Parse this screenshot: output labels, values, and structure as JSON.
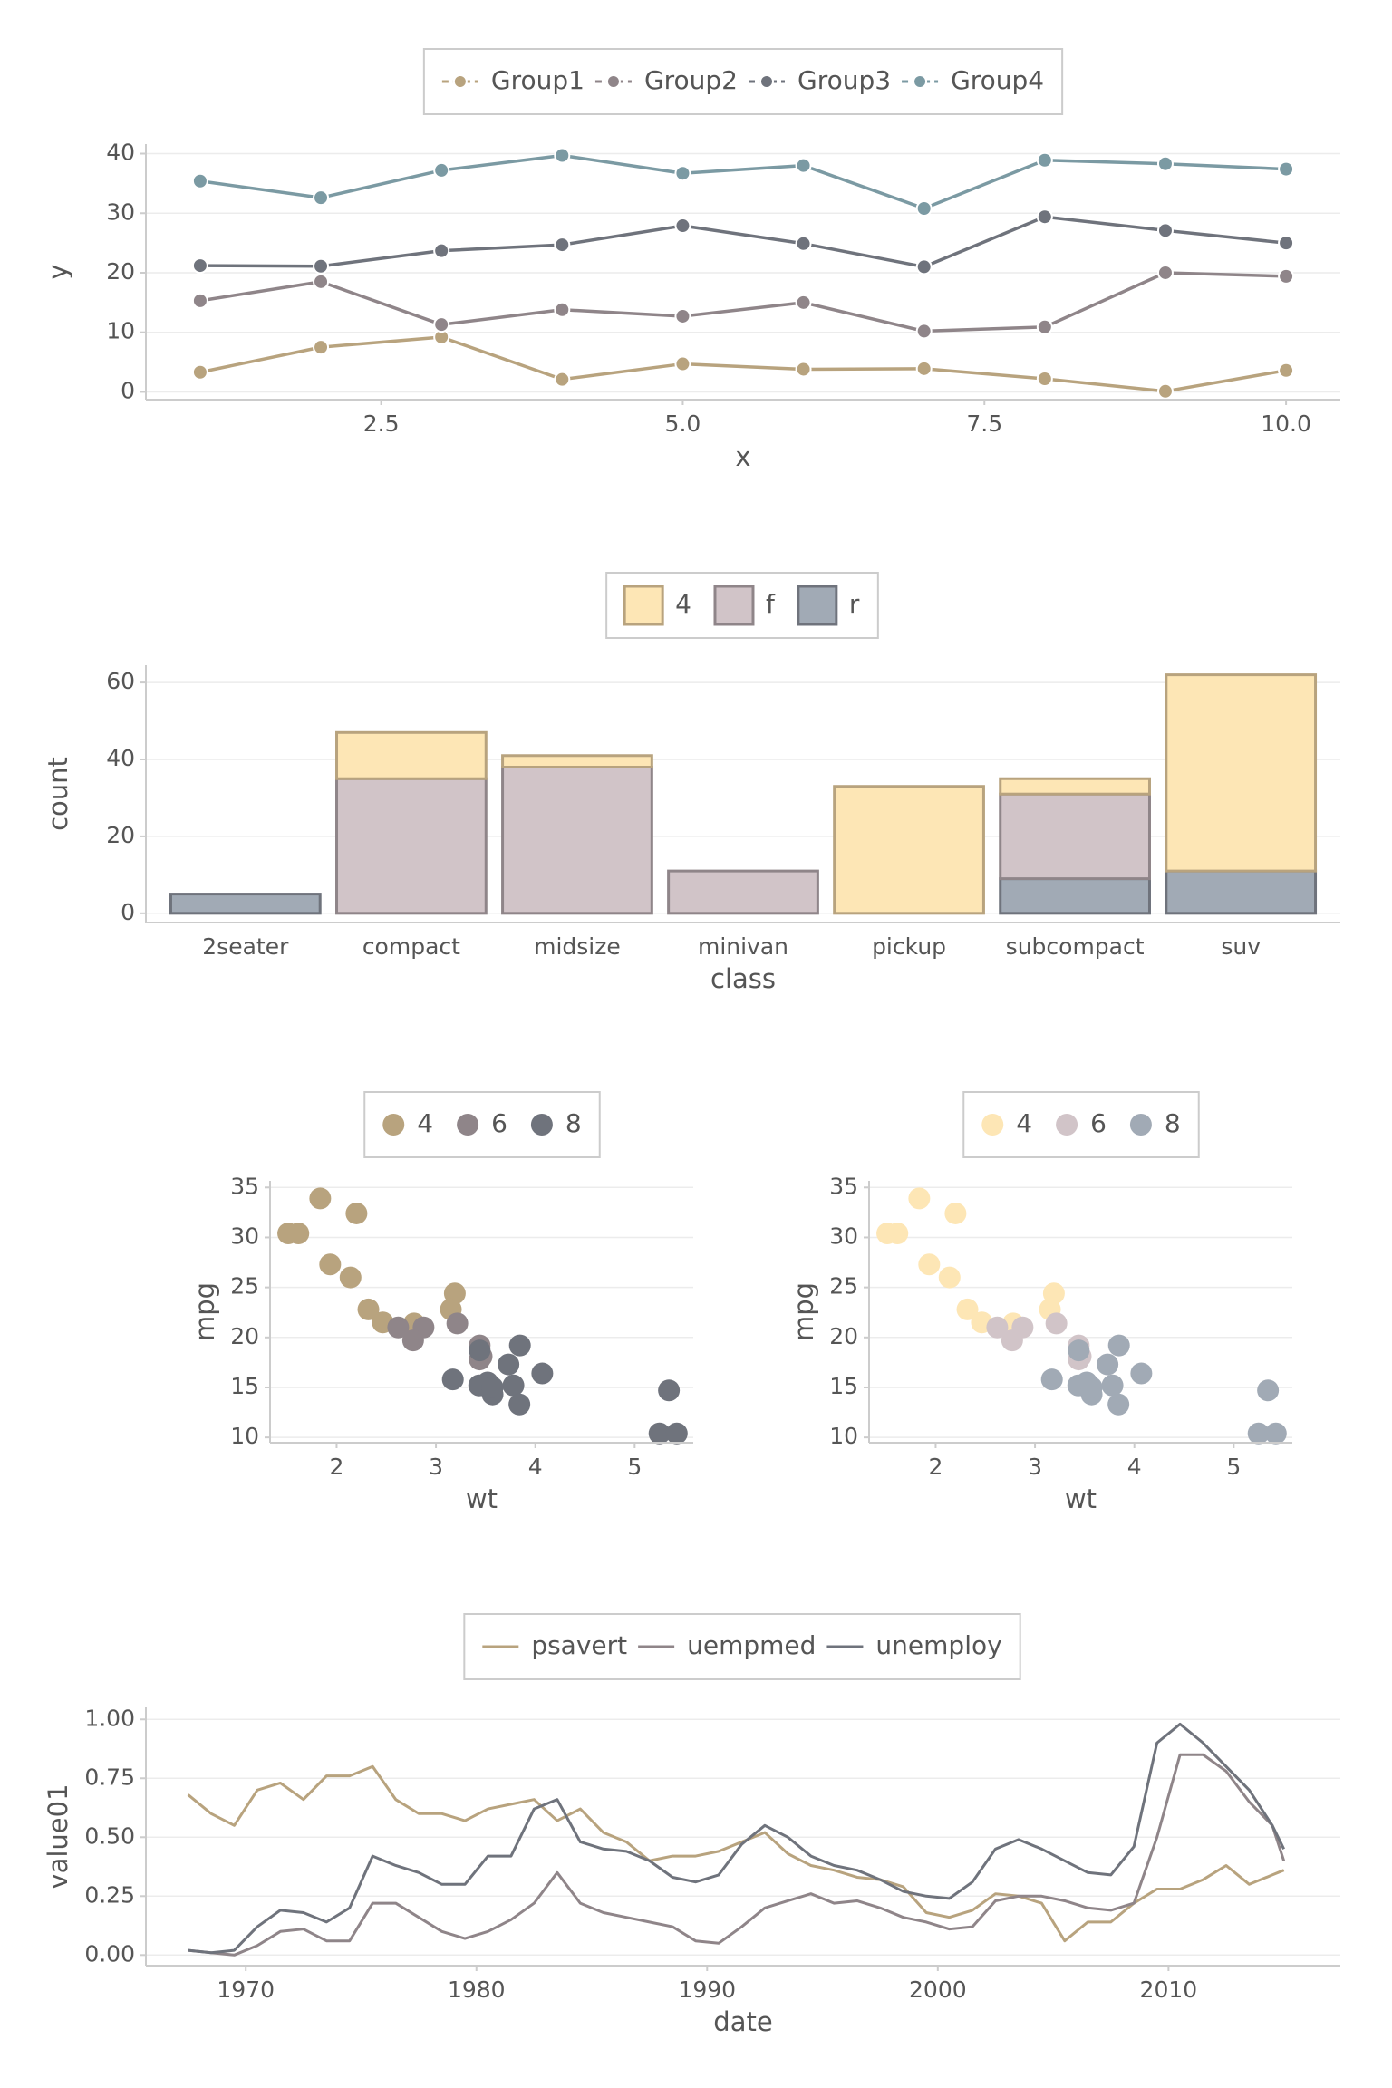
{
  "chart_data": [
    {
      "type": "line",
      "x": [
        1,
        2,
        3,
        4,
        5,
        6,
        7,
        8,
        9,
        10
      ],
      "series": [
        {
          "name": "Group1",
          "color": "#b8a37e",
          "values": [
            3.3,
            7.5,
            9.2,
            2.1,
            4.7,
            3.8,
            3.9,
            2.2,
            0.1,
            3.6
          ]
        },
        {
          "name": "Group2",
          "color": "#8f8589",
          "values": [
            15.3,
            18.5,
            11.3,
            13.8,
            12.7,
            15.0,
            10.2,
            10.9,
            20.0,
            19.4
          ]
        },
        {
          "name": "Group3",
          "color": "#6f737c",
          "values": [
            21.2,
            21.1,
            23.7,
            24.7,
            27.9,
            24.9,
            21.0,
            29.4,
            27.1,
            25.0
          ]
        },
        {
          "name": "Group4",
          "color": "#7b9aa3",
          "values": [
            35.4,
            32.6,
            37.2,
            39.7,
            36.7,
            38.0,
            30.8,
            38.9,
            38.3,
            37.4
          ]
        }
      ],
      "xlim": [
        0.55,
        10.45
      ],
      "ylim": [
        -1.3,
        41.6
      ],
      "xticks": [
        2.5,
        {
          "value": 5,
          "label": "5.0"
        },
        7.5,
        {
          "value": 10,
          "label": "10.0"
        }
      ],
      "yticks": [
        0,
        10,
        20,
        30,
        40
      ],
      "x_label": "x",
      "y_label": "y",
      "legend": "top",
      "grid": true,
      "markers": true
    },
    {
      "type": "bar",
      "stacked": true,
      "categories": [
        "2seater",
        "compact",
        "midsize",
        "minivan",
        "pickup",
        "subcompact",
        "suv"
      ],
      "series": [
        {
          "name": "4",
          "color": "#fde6b5",
          "edgecolor": "#b8a37e",
          "values": [
            0,
            12,
            3,
            0,
            33,
            4,
            51
          ]
        },
        {
          "name": "f",
          "color": "#d1c4c8",
          "edgecolor": "#8f8589",
          "values": [
            0,
            35,
            38,
            11,
            0,
            22,
            0
          ]
        },
        {
          "name": "r",
          "color": "#a1aab5",
          "edgecolor": "#6f737c",
          "values": [
            5,
            0,
            0,
            0,
            0,
            9,
            11
          ]
        }
      ],
      "ylim": [
        -2.4,
        64.5
      ],
      "yticks": [
        0,
        20,
        40,
        60
      ],
      "x_label": "class",
      "y_label": "count",
      "legend": "top",
      "grid": true
    },
    {
      "type": "scatter",
      "series": [
        {
          "name": "4",
          "color": "#b8a37e",
          "x": [
            2.32,
            3.19,
            3.15,
            2.2,
            1.615,
            1.835,
            2.465,
            1.935,
            2.14,
            1.513,
            2.78
          ],
          "values": [
            22.8,
            24.4,
            22.8,
            32.4,
            30.4,
            33.9,
            21.5,
            27.3,
            26.0,
            30.4,
            21.4
          ]
        },
        {
          "name": "6",
          "color": "#8f8589",
          "x": [
            2.62,
            2.875,
            3.215,
            3.46,
            3.44,
            3.44,
            2.77
          ],
          "values": [
            21.0,
            21.0,
            21.4,
            18.1,
            19.2,
            17.8,
            19.7
          ]
        },
        {
          "name": "8",
          "color": "#6f737c",
          "x": [
            3.44,
            3.57,
            4.07,
            3.73,
            3.78,
            5.25,
            5.424,
            5.345,
            3.52,
            3.435,
            3.84,
            3.845,
            3.17,
            3.57
          ],
          "values": [
            18.7,
            14.3,
            16.4,
            17.3,
            15.2,
            10.4,
            10.4,
            14.7,
            15.5,
            15.2,
            13.3,
            19.2,
            15.8,
            15.0
          ]
        }
      ],
      "xlim": [
        1.33,
        5.59
      ],
      "ylim": [
        9.47,
        35.66
      ],
      "xticks": [
        2,
        3,
        4,
        5
      ],
      "yticks": [
        10,
        15,
        20,
        25,
        30,
        35
      ],
      "x_label": "wt",
      "y_label": "mpg",
      "legend": "top",
      "grid": true
    },
    {
      "type": "scatter",
      "series": [
        {
          "name": "4",
          "color": "#fde6b5",
          "x": [
            2.32,
            3.19,
            3.15,
            2.2,
            1.615,
            1.835,
            2.465,
            1.935,
            2.14,
            1.513,
            2.78
          ],
          "values": [
            22.8,
            24.4,
            22.8,
            32.4,
            30.4,
            33.9,
            21.5,
            27.3,
            26.0,
            30.4,
            21.4
          ]
        },
        {
          "name": "6",
          "color": "#d1c4c8",
          "x": [
            2.62,
            2.875,
            3.215,
            3.46,
            3.44,
            3.44,
            2.77
          ],
          "values": [
            21.0,
            21.0,
            21.4,
            18.1,
            19.2,
            17.8,
            19.7
          ]
        },
        {
          "name": "8",
          "color": "#a1aab5",
          "x": [
            3.44,
            3.57,
            4.07,
            3.73,
            3.78,
            5.25,
            5.424,
            5.345,
            3.52,
            3.435,
            3.84,
            3.845,
            3.17,
            3.57
          ],
          "values": [
            18.7,
            14.3,
            16.4,
            17.3,
            15.2,
            10.4,
            10.4,
            14.7,
            15.5,
            15.2,
            13.3,
            19.2,
            15.8,
            15.0
          ]
        }
      ],
      "xlim": [
        1.33,
        5.59
      ],
      "ylim": [
        9.47,
        35.66
      ],
      "xticks": [
        2,
        3,
        4,
        5
      ],
      "yticks": [
        10,
        15,
        20,
        25,
        30,
        35
      ],
      "x_label": "wt",
      "y_label": "mpg",
      "legend": "top",
      "grid": true
    },
    {
      "type": "line",
      "x": [
        1967.5,
        1968.5,
        1969.5,
        1970.5,
        1971.5,
        1972.5,
        1973.5,
        1974.5,
        1975.5,
        1976.5,
        1977.5,
        1978.5,
        1979.5,
        1980.5,
        1981.5,
        1982.5,
        1983.5,
        1984.5,
        1985.5,
        1986.5,
        1987.5,
        1988.5,
        1989.5,
        1990.5,
        1991.5,
        1992.5,
        1993.5,
        1994.5,
        1995.5,
        1996.5,
        1997.5,
        1998.5,
        1999.5,
        2000.5,
        2001.5,
        2002.5,
        2003.5,
        2004.5,
        2005.5,
        2006.5,
        2007.5,
        2008.5,
        2009.5,
        2010.5,
        2011.5,
        2012.5,
        2013.5,
        2014.5,
        2015.0
      ],
      "series": [
        {
          "name": "psavert",
          "color": "#b8a37e",
          "values": [
            0.68,
            0.6,
            0.55,
            0.7,
            0.73,
            0.66,
            0.76,
            0.76,
            0.8,
            0.66,
            0.6,
            0.6,
            0.57,
            0.62,
            0.64,
            0.66,
            0.57,
            0.62,
            0.52,
            0.48,
            0.4,
            0.42,
            0.42,
            0.44,
            0.48,
            0.52,
            0.43,
            0.38,
            0.36,
            0.33,
            0.32,
            0.29,
            0.18,
            0.16,
            0.19,
            0.26,
            0.25,
            0.22,
            0.06,
            0.14,
            0.14,
            0.22,
            0.28,
            0.28,
            0.32,
            0.38,
            0.3,
            0.34,
            0.36
          ]
        },
        {
          "name": "uempmed",
          "color": "#8f8589",
          "values": [
            0.02,
            0.01,
            0.0,
            0.04,
            0.1,
            0.11,
            0.06,
            0.06,
            0.22,
            0.22,
            0.16,
            0.1,
            0.07,
            0.1,
            0.15,
            0.22,
            0.35,
            0.22,
            0.18,
            0.16,
            0.14,
            0.12,
            0.06,
            0.05,
            0.12,
            0.2,
            0.23,
            0.26,
            0.22,
            0.23,
            0.2,
            0.16,
            0.14,
            0.11,
            0.12,
            0.23,
            0.25,
            0.25,
            0.23,
            0.2,
            0.19,
            0.22,
            0.5,
            0.85,
            0.85,
            0.78,
            0.65,
            0.55,
            0.4
          ]
        },
        {
          "name": "unemploy",
          "color": "#6f737c",
          "values": [
            0.02,
            0.01,
            0.02,
            0.12,
            0.19,
            0.18,
            0.14,
            0.2,
            0.42,
            0.38,
            0.35,
            0.3,
            0.3,
            0.42,
            0.42,
            0.62,
            0.66,
            0.48,
            0.45,
            0.44,
            0.4,
            0.33,
            0.31,
            0.34,
            0.47,
            0.55,
            0.5,
            0.42,
            0.38,
            0.36,
            0.32,
            0.27,
            0.25,
            0.24,
            0.31,
            0.45,
            0.49,
            0.45,
            0.4,
            0.35,
            0.34,
            0.46,
            0.9,
            0.98,
            0.9,
            0.8,
            0.7,
            0.55,
            0.45
          ]
        }
      ],
      "xlim": [
        1965.67,
        2017.45
      ],
      "ylim": [
        -0.045,
        1.051
      ],
      "xticks": [
        1970,
        1980,
        1990,
        2000,
        2010
      ],
      "yticks": [
        {
          "value": 0,
          "label": "0.00"
        },
        {
          "value": 0.25,
          "label": "0.25"
        },
        {
          "value": 0.5,
          "label": "0.50"
        },
        {
          "value": 0.75,
          "label": "0.75"
        },
        {
          "value": 1,
          "label": "1.00"
        }
      ],
      "x_label": "date",
      "y_label": "value01",
      "legend": "top",
      "grid": true,
      "markers": false
    }
  ]
}
